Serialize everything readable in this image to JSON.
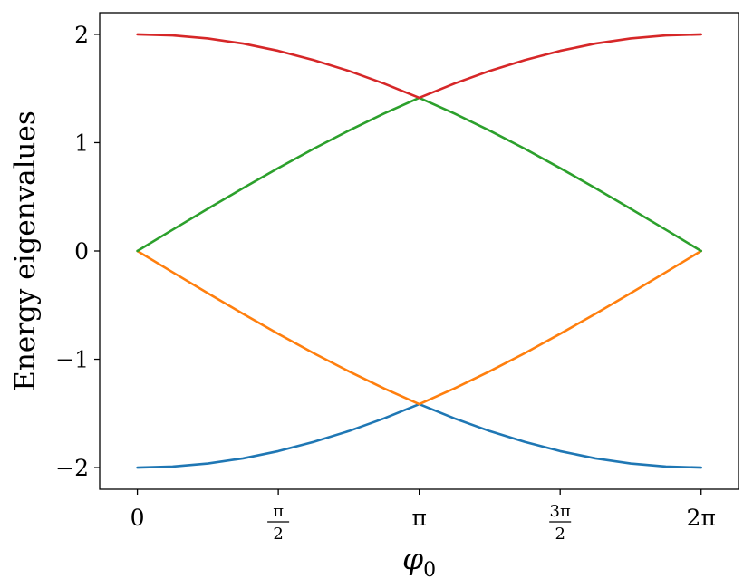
{
  "chart_data": {
    "type": "line",
    "title": "",
    "xlabel": "φ",
    "xlabel_sub": "0",
    "ylabel": "Energy eigenvalues",
    "xlim": [
      -0.42,
      6.7
    ],
    "ylim": [
      -2.2,
      2.2
    ],
    "x_ticks": [
      {
        "value": 0,
        "label": "0"
      },
      {
        "value": 1.5708,
        "num": "π",
        "den": "2"
      },
      {
        "value": 3.1416,
        "label": "π"
      },
      {
        "value": 4.7124,
        "num": "3π",
        "den": "2"
      },
      {
        "value": 6.2832,
        "label": "2π"
      }
    ],
    "y_ticks": [
      {
        "value": -2,
        "label": "−2"
      },
      {
        "value": -1,
        "label": "−1"
      },
      {
        "value": 0,
        "label": "0"
      },
      {
        "value": 1,
        "label": "1"
      },
      {
        "value": 2,
        "label": "2"
      }
    ],
    "x": [
      0,
      0.3927,
      0.7854,
      1.1781,
      1.5708,
      1.9635,
      2.3562,
      2.7489,
      3.1416,
      3.5343,
      3.927,
      4.3197,
      4.7124,
      5.1051,
      5.4978,
      5.8905,
      6.2832
    ],
    "series": [
      {
        "color": "#1f77b4",
        "values": [
          -2,
          -1.99,
          -1.962,
          -1.915,
          -1.848,
          -1.763,
          -1.663,
          -1.546,
          -1.414,
          -1.546,
          -1.663,
          -1.763,
          -1.848,
          -1.915,
          -1.962,
          -1.99,
          -2
        ]
      },
      {
        "color": "#ff7f0e",
        "values": [
          0,
          -0.196,
          -0.39,
          -0.58,
          -0.765,
          -0.943,
          -1.111,
          -1.269,
          -1.414,
          -1.269,
          -1.111,
          -0.943,
          -0.765,
          -0.58,
          -0.39,
          -0.196,
          0
        ]
      },
      {
        "color": "#2ca02c",
        "values": [
          0,
          0.196,
          0.39,
          0.58,
          0.765,
          0.943,
          1.111,
          1.269,
          1.414,
          1.269,
          1.111,
          0.943,
          0.765,
          0.58,
          0.39,
          0.196,
          0
        ]
      },
      {
        "color": "#d62728",
        "values": [
          2,
          1.99,
          1.962,
          1.915,
          1.848,
          1.763,
          1.663,
          1.546,
          1.414,
          1.546,
          1.663,
          1.763,
          1.848,
          1.915,
          1.962,
          1.99,
          2
        ]
      }
    ],
    "grid": false,
    "legend": "none"
  }
}
